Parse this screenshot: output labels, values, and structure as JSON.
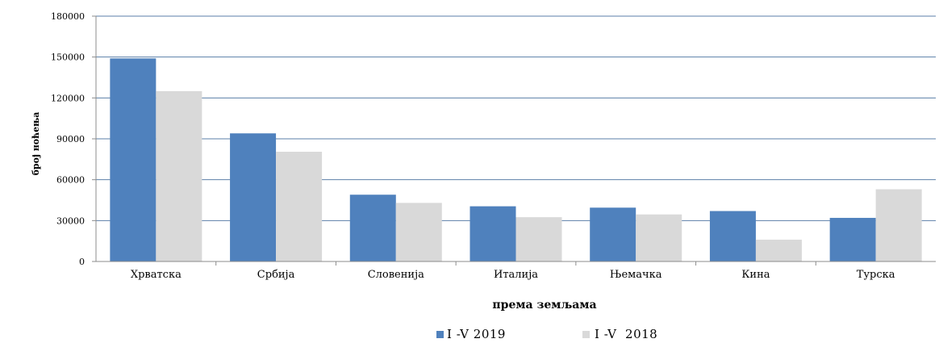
{
  "chart_data": {
    "type": "bar",
    "categories": [
      "Хрватска",
      "Србија",
      "Словенија",
      "Италија",
      "Њемачка",
      "Кина",
      "Турска"
    ],
    "series": [
      {
        "name": "I -V 2019",
        "values": [
          149000,
          94000,
          49000,
          40500,
          39500,
          37000,
          32000
        ],
        "color": "#4F81BD"
      },
      {
        "name": "I -V  2018",
        "values": [
          125000,
          80500,
          43000,
          32500,
          34500,
          16000,
          53000
        ],
        "color": "#D9D9D9"
      }
    ],
    "xlabel": "према земљама",
    "ylabel": "број ноћења",
    "ylim": [
      0,
      180000
    ],
    "yticks": [
      "0",
      "30000",
      "60000",
      "90000",
      "120000",
      "150000",
      "180000"
    ],
    "grid": true,
    "legend_position": "bottom",
    "gridline_color": "#5B7FA8"
  }
}
